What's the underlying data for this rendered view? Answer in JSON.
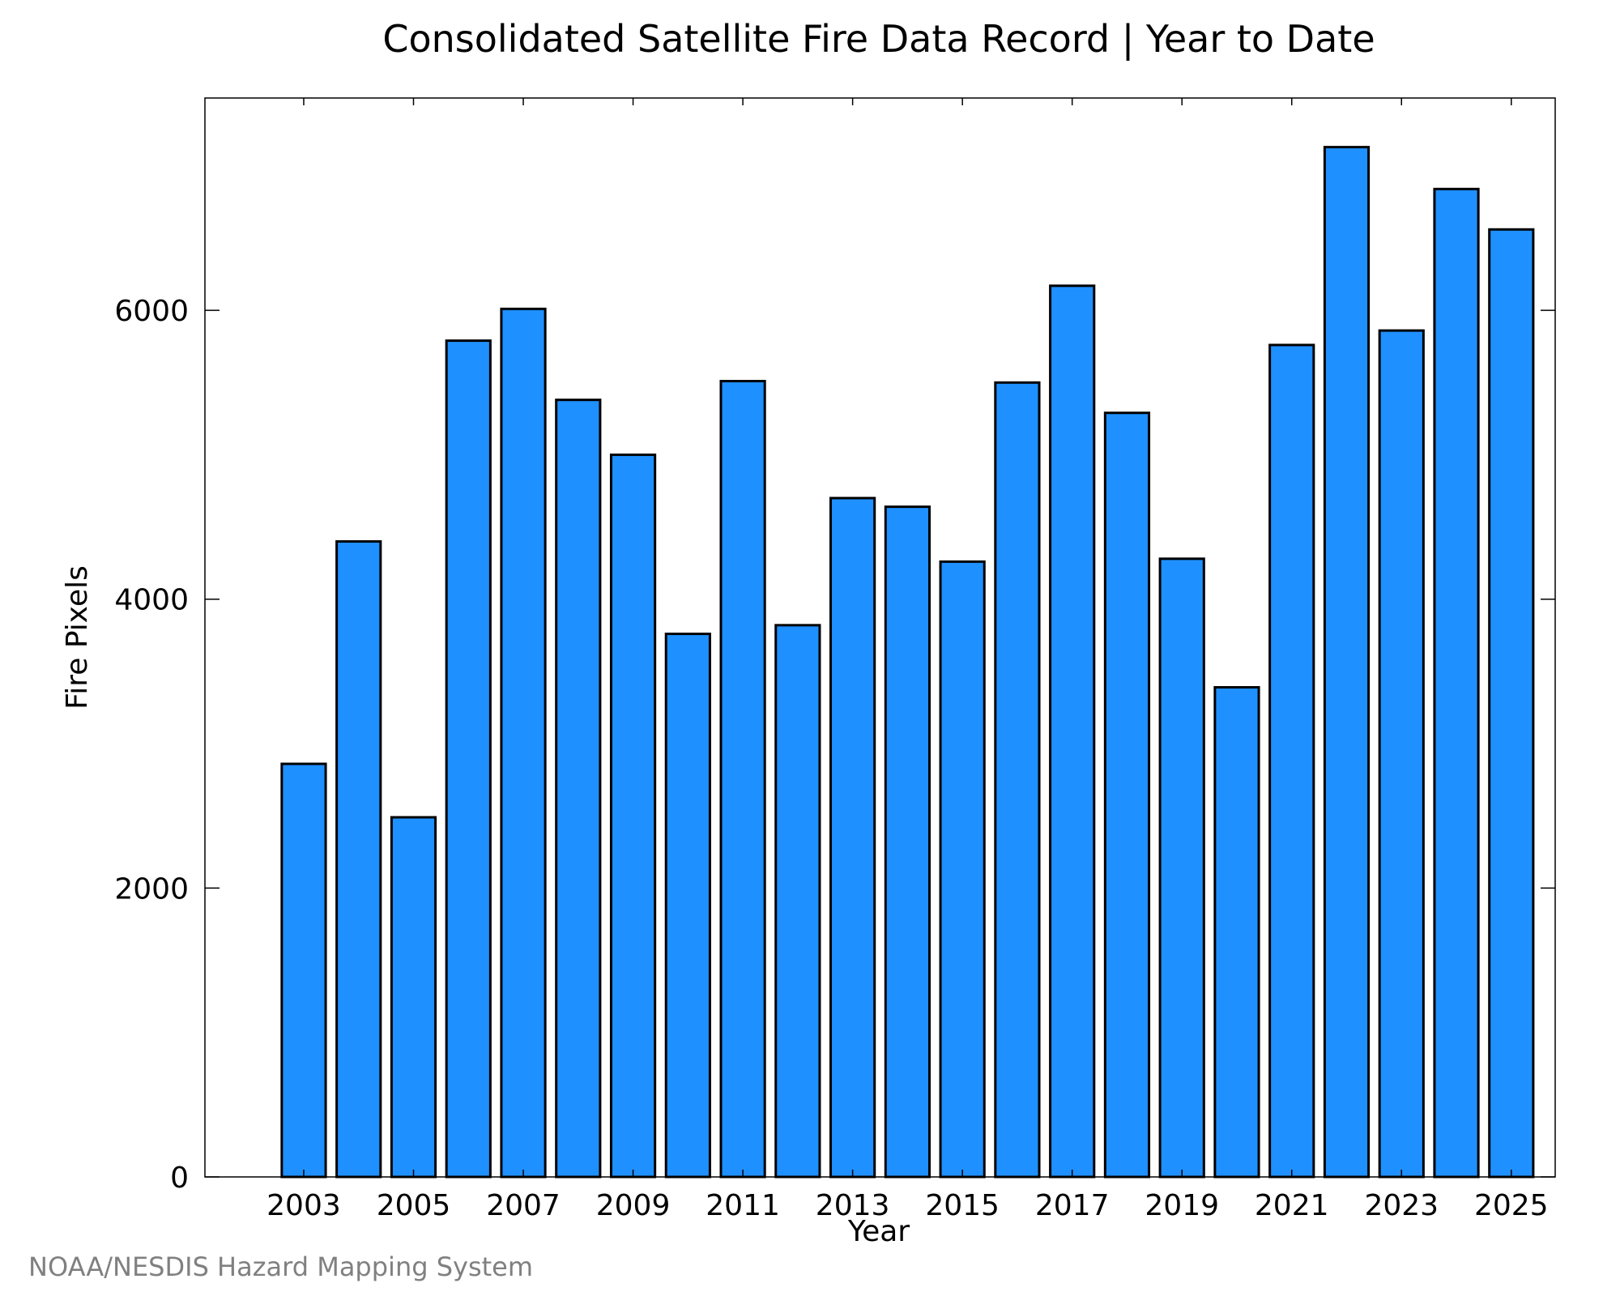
{
  "chart_data": {
    "type": "bar",
    "title": "Consolidated Satellite Fire Data Record | Year to Date",
    "xlabel": "Year",
    "ylabel": "Fire Pixels",
    "categories": [
      "2003",
      "2004",
      "2005",
      "2006",
      "2007",
      "2008",
      "2009",
      "2010",
      "2011",
      "2012",
      "2013",
      "2014",
      "2015",
      "2016",
      "2017",
      "2018",
      "2019",
      "2020",
      "2021",
      "2022",
      "2023",
      "2024",
      "2025"
    ],
    "values": [
      2860,
      4400,
      2490,
      5790,
      6010,
      5380,
      5000,
      3760,
      5510,
      3820,
      4700,
      4640,
      4260,
      5500,
      6170,
      5290,
      4280,
      3390,
      5760,
      7130,
      5860,
      6840,
      6560
    ],
    "x_tick_labels": [
      "2003",
      "2005",
      "2007",
      "2009",
      "2011",
      "2013",
      "2015",
      "2017",
      "2019",
      "2021",
      "2023",
      "2025"
    ],
    "y_tick_labels": [
      "0",
      "2000",
      "4000",
      "6000"
    ],
    "y_ticks": [
      0,
      2000,
      4000,
      6000
    ],
    "ylim": [
      0,
      7470
    ],
    "xlim": [
      2001.2,
      2025.8
    ],
    "bar_color": "#1e90ff",
    "grid": false,
    "legend": "none"
  },
  "credit": "NOAA/NESDIS Hazard Mapping System"
}
